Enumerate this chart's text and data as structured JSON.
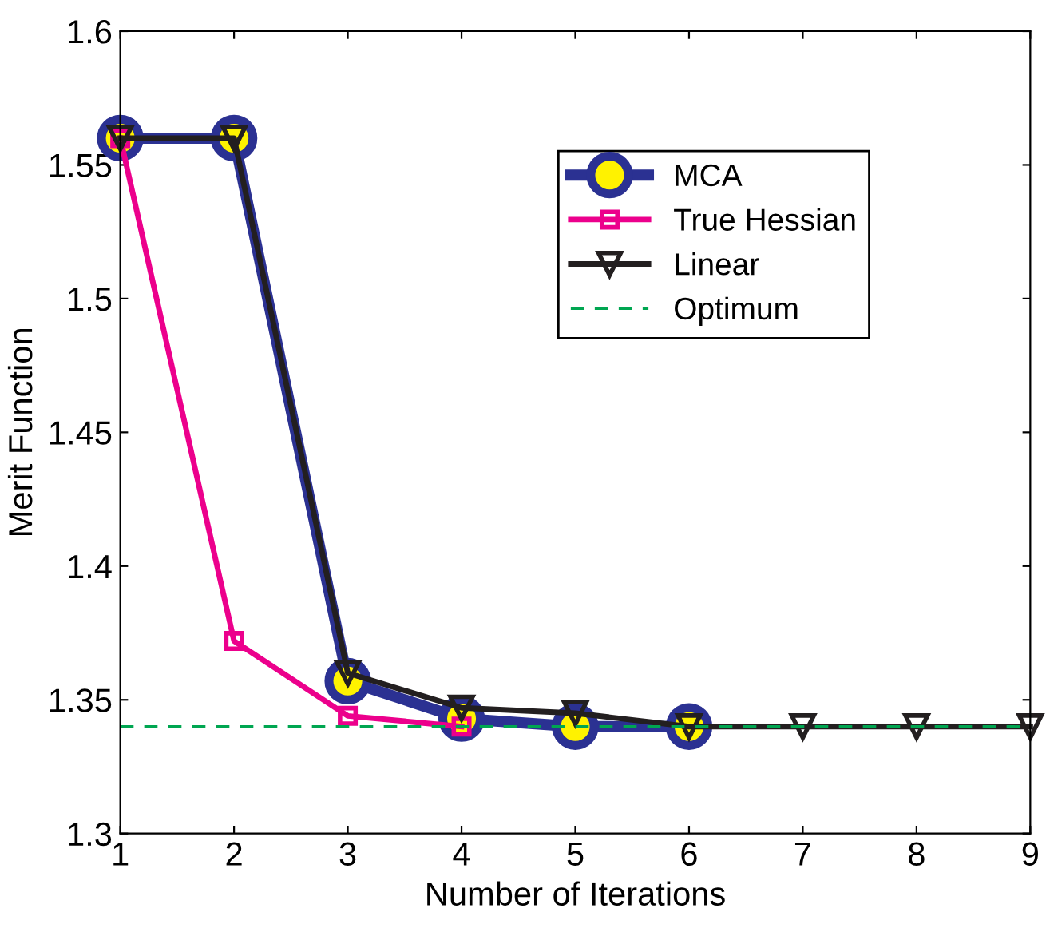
{
  "chart_data": {
    "type": "line",
    "xlabel": "Number of Iterations",
    "ylabel": "Merit Function",
    "xlim": [
      1,
      9
    ],
    "xticks": [
      1,
      2,
      3,
      4,
      5,
      6,
      7,
      8,
      9
    ],
    "ylim": [
      1.3,
      1.6
    ],
    "yticks": [
      1.3,
      1.35,
      1.4,
      1.45,
      1.5,
      1.55,
      1.6
    ],
    "grid": false,
    "legend": "top right",
    "series": [
      {
        "name": "MCA",
        "color": "#2b3192",
        "marker": "circle",
        "line_style": "solid",
        "x": [
          1,
          2,
          3,
          4,
          5,
          6
        ],
        "values": [
          1.56,
          1.56,
          1.357,
          1.343,
          1.34,
          1.34
        ]
      },
      {
        "name": "True Hessian",
        "color": "#ec008c",
        "marker": "square",
        "line_style": "solid",
        "x": [
          1,
          2,
          3,
          4
        ],
        "values": [
          1.56,
          1.372,
          1.344,
          1.34
        ]
      },
      {
        "name": "Linear",
        "color": "#231f20",
        "marker": "triangle",
        "line_style": "solid",
        "x": [
          1,
          2,
          3,
          4,
          5,
          6,
          7,
          8,
          9
        ],
        "values": [
          1.56,
          1.56,
          1.36,
          1.347,
          1.345,
          1.34,
          1.34,
          1.34,
          1.34
        ]
      },
      {
        "name": "Optimum",
        "color": "#00a651",
        "marker": "none",
        "line_style": "dashed",
        "x": [
          1,
          9
        ],
        "values": [
          1.34,
          1.34
        ]
      }
    ]
  }
}
